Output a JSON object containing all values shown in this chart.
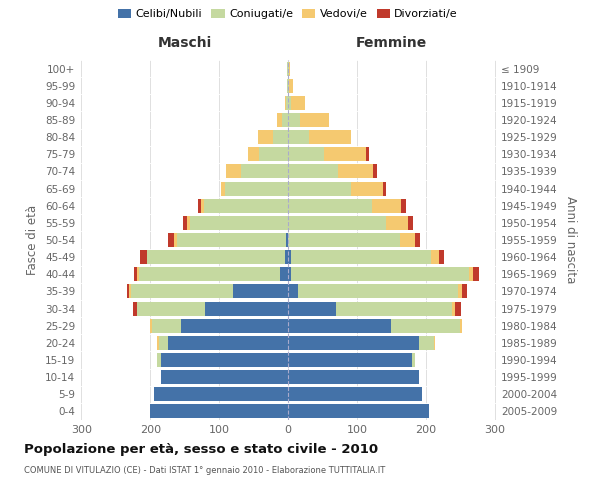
{
  "age_groups": [
    "0-4",
    "5-9",
    "10-14",
    "15-19",
    "20-24",
    "25-29",
    "30-34",
    "35-39",
    "40-44",
    "45-49",
    "50-54",
    "55-59",
    "60-64",
    "65-69",
    "70-74",
    "75-79",
    "80-84",
    "85-89",
    "90-94",
    "95-99",
    "100+"
  ],
  "birth_years": [
    "2005-2009",
    "2000-2004",
    "1995-1999",
    "1990-1994",
    "1985-1989",
    "1980-1984",
    "1975-1979",
    "1970-1974",
    "1965-1969",
    "1960-1964",
    "1955-1959",
    "1950-1954",
    "1945-1949",
    "1940-1944",
    "1935-1939",
    "1930-1934",
    "1925-1929",
    "1920-1924",
    "1915-1919",
    "1910-1914",
    "≤ 1909"
  ],
  "males": {
    "celibe": [
      200,
      195,
      185,
      185,
      175,
      155,
      120,
      80,
      12,
      5,
      3,
      0,
      0,
      0,
      0,
      0,
      0,
      0,
      0,
      0,
      0
    ],
    "coniugato": [
      0,
      0,
      0,
      5,
      12,
      42,
      100,
      148,
      205,
      200,
      158,
      142,
      122,
      92,
      68,
      42,
      22,
      8,
      3,
      2,
      1
    ],
    "vedovo": [
      0,
      0,
      0,
      0,
      3,
      3,
      0,
      3,
      3,
      0,
      5,
      5,
      5,
      5,
      22,
      16,
      22,
      8,
      2,
      0,
      0
    ],
    "divorziato": [
      0,
      0,
      0,
      0,
      0,
      0,
      5,
      3,
      3,
      10,
      8,
      5,
      3,
      0,
      0,
      0,
      0,
      0,
      0,
      0,
      0
    ]
  },
  "females": {
    "nubile": [
      205,
      195,
      190,
      180,
      190,
      150,
      70,
      15,
      5,
      5,
      0,
      0,
      0,
      0,
      0,
      0,
      0,
      0,
      0,
      0,
      0
    ],
    "coniugata": [
      0,
      0,
      0,
      5,
      22,
      100,
      168,
      232,
      258,
      202,
      162,
      142,
      122,
      92,
      72,
      52,
      30,
      18,
      5,
      2,
      1
    ],
    "vedova": [
      0,
      0,
      0,
      0,
      2,
      3,
      5,
      5,
      5,
      12,
      22,
      32,
      42,
      46,
      52,
      62,
      62,
      42,
      20,
      5,
      2
    ],
    "divorziata": [
      0,
      0,
      0,
      0,
      0,
      0,
      8,
      8,
      10,
      8,
      8,
      8,
      8,
      5,
      5,
      3,
      0,
      0,
      0,
      0,
      0
    ]
  },
  "colors": {
    "celibe": "#4472a8",
    "coniugato": "#c5d9a0",
    "vedovo": "#f5c970",
    "divorziato": "#c0392b"
  },
  "legend_labels": [
    "Celibi/Nubili",
    "Coniugati/e",
    "Vedovi/e",
    "Divorziati/e"
  ],
  "legend_colors": [
    "#4472a8",
    "#c5d9a0",
    "#f5c970",
    "#c0392b"
  ],
  "title": "Popolazione per età, sesso e stato civile - 2010",
  "subtitle": "COMUNE DI VITULAZIO (CE) - Dati ISTAT 1° gennaio 2010 - Elaborazione TUTTITALIA.IT",
  "label_maschi": "Maschi",
  "label_femmine": "Femmine",
  "ylabel_left": "Fasce di età",
  "ylabel_right": "Anni di nascita",
  "xlim": 305,
  "background_color": "#ffffff",
  "bar_height": 0.82
}
